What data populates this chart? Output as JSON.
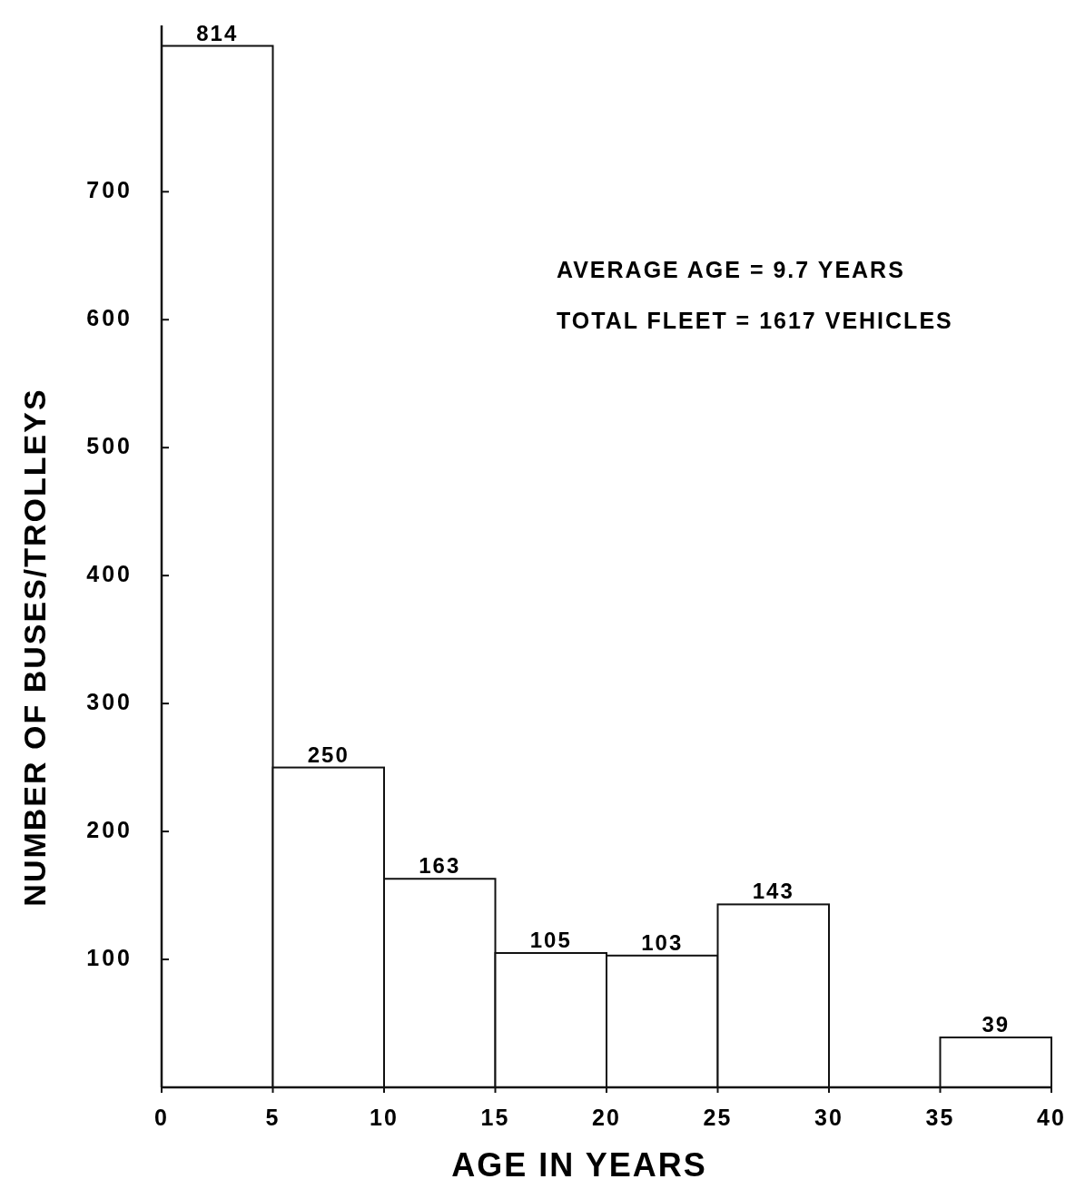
{
  "chart_data": {
    "type": "histogram",
    "xlabel": "AGE IN YEARS",
    "ylabel": "NUMBER OF BUSES/TROLLEYS",
    "bins": [
      0,
      5,
      10,
      15,
      20,
      25,
      30,
      35,
      40
    ],
    "values": [
      814,
      250,
      163,
      105,
      103,
      143,
      0,
      39
    ],
    "value_labels": [
      "814",
      "250",
      "163",
      "105",
      "103",
      "143",
      null,
      "39"
    ],
    "color": "#ffffff",
    "xlim": [
      0,
      40
    ],
    "xticks": [
      0,
      5,
      10,
      15,
      20,
      25,
      30,
      35,
      40
    ],
    "ylim": [
      0,
      830
    ],
    "yticks": [
      100,
      200,
      300,
      400,
      500,
      600,
      700
    ],
    "grid": false,
    "annotations": [
      "AVERAGE AGE = 9.7 YEARS",
      "TOTAL FLEET = 1617 VEHICLES"
    ]
  }
}
